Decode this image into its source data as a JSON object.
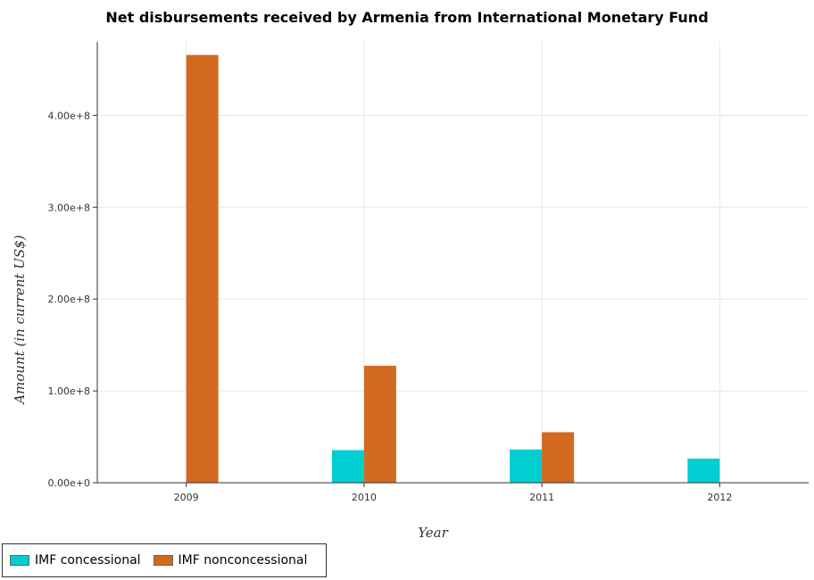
{
  "chart_data": {
    "type": "bar",
    "title": "Net disbursements received by Armenia from International Monetary Fund",
    "xlabel": "Year",
    "ylabel": "Amount (in current US$)",
    "categories": [
      "2009",
      "2010",
      "2011",
      "2012"
    ],
    "series": [
      {
        "name": "IMF concessional",
        "color": "#00ced1",
        "values": [
          0,
          35500000,
          36200000,
          26300000
        ]
      },
      {
        "name": "IMF nonconcessional",
        "color": "#d2691e",
        "values": [
          465800000,
          127400000,
          55000000,
          0
        ]
      }
    ],
    "ylim": [
      0,
      480000000
    ],
    "yticks": [
      0,
      100000000,
      200000000,
      300000000,
      400000000
    ],
    "ytick_labels": [
      "0.00e+0",
      "1.00e+8",
      "2.00e+8",
      "3.00e+8",
      "4.00e+8"
    ],
    "grid": true,
    "legend_position": "bottom-left"
  }
}
